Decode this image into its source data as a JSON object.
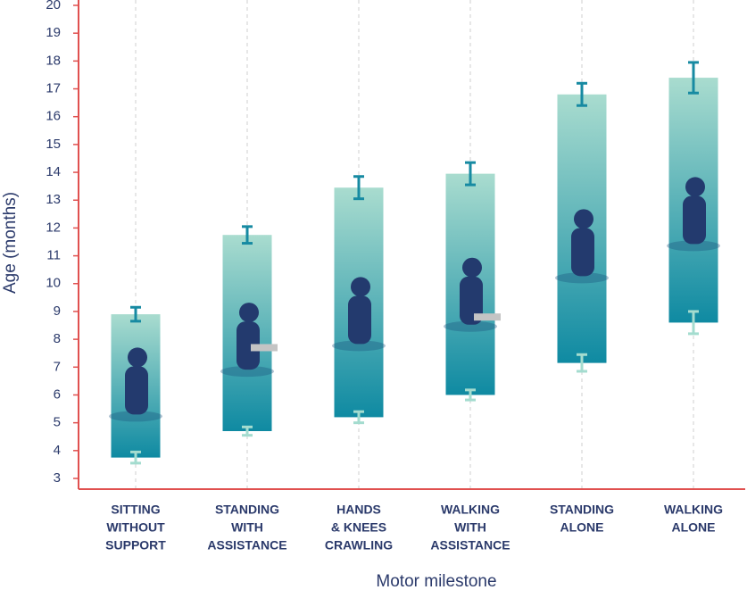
{
  "chart_data": {
    "type": "range",
    "categories": [
      [
        "SITTING",
        "WITHOUT",
        "SUPPORT"
      ],
      [
        "STANDING",
        "WITH",
        "ASSISTANCE"
      ],
      [
        "HANDS",
        "& KNEES",
        "CRAWLING"
      ],
      [
        "WALKING",
        "WITH",
        "ASSISTANCE"
      ],
      [
        "STANDING",
        "ALONE"
      ],
      [
        "WALKING",
        "ALONE"
      ]
    ],
    "low": [
      3.75,
      4.7,
      5.2,
      6.0,
      7.15,
      8.6
    ],
    "high": [
      8.9,
      11.75,
      13.45,
      13.95,
      16.8,
      17.4
    ],
    "low_error": [
      0.2,
      0.15,
      0.2,
      0.18,
      0.3,
      0.4
    ],
    "high_error": [
      0.25,
      0.3,
      0.4,
      0.4,
      0.4,
      0.55
    ],
    "median": [
      null,
      7.7,
      null,
      8.8,
      null,
      null
    ],
    "ylim": [
      3,
      20
    ],
    "yticks": [
      3,
      4,
      5,
      6,
      7,
      8,
      9,
      10,
      11,
      12,
      13,
      14,
      15,
      16,
      17,
      18,
      19,
      20
    ],
    "ylabel": "Age (months)",
    "xlabel": "Motor milestone",
    "colors": {
      "bar_top": "#a9dccf",
      "bar_bottom": "#0f8aa2",
      "high_error": "#178aa2",
      "low_error": "#a4dccf",
      "median": "#c4c4c4",
      "axis": "#e0504f",
      "figure": "#233a6e"
    }
  }
}
